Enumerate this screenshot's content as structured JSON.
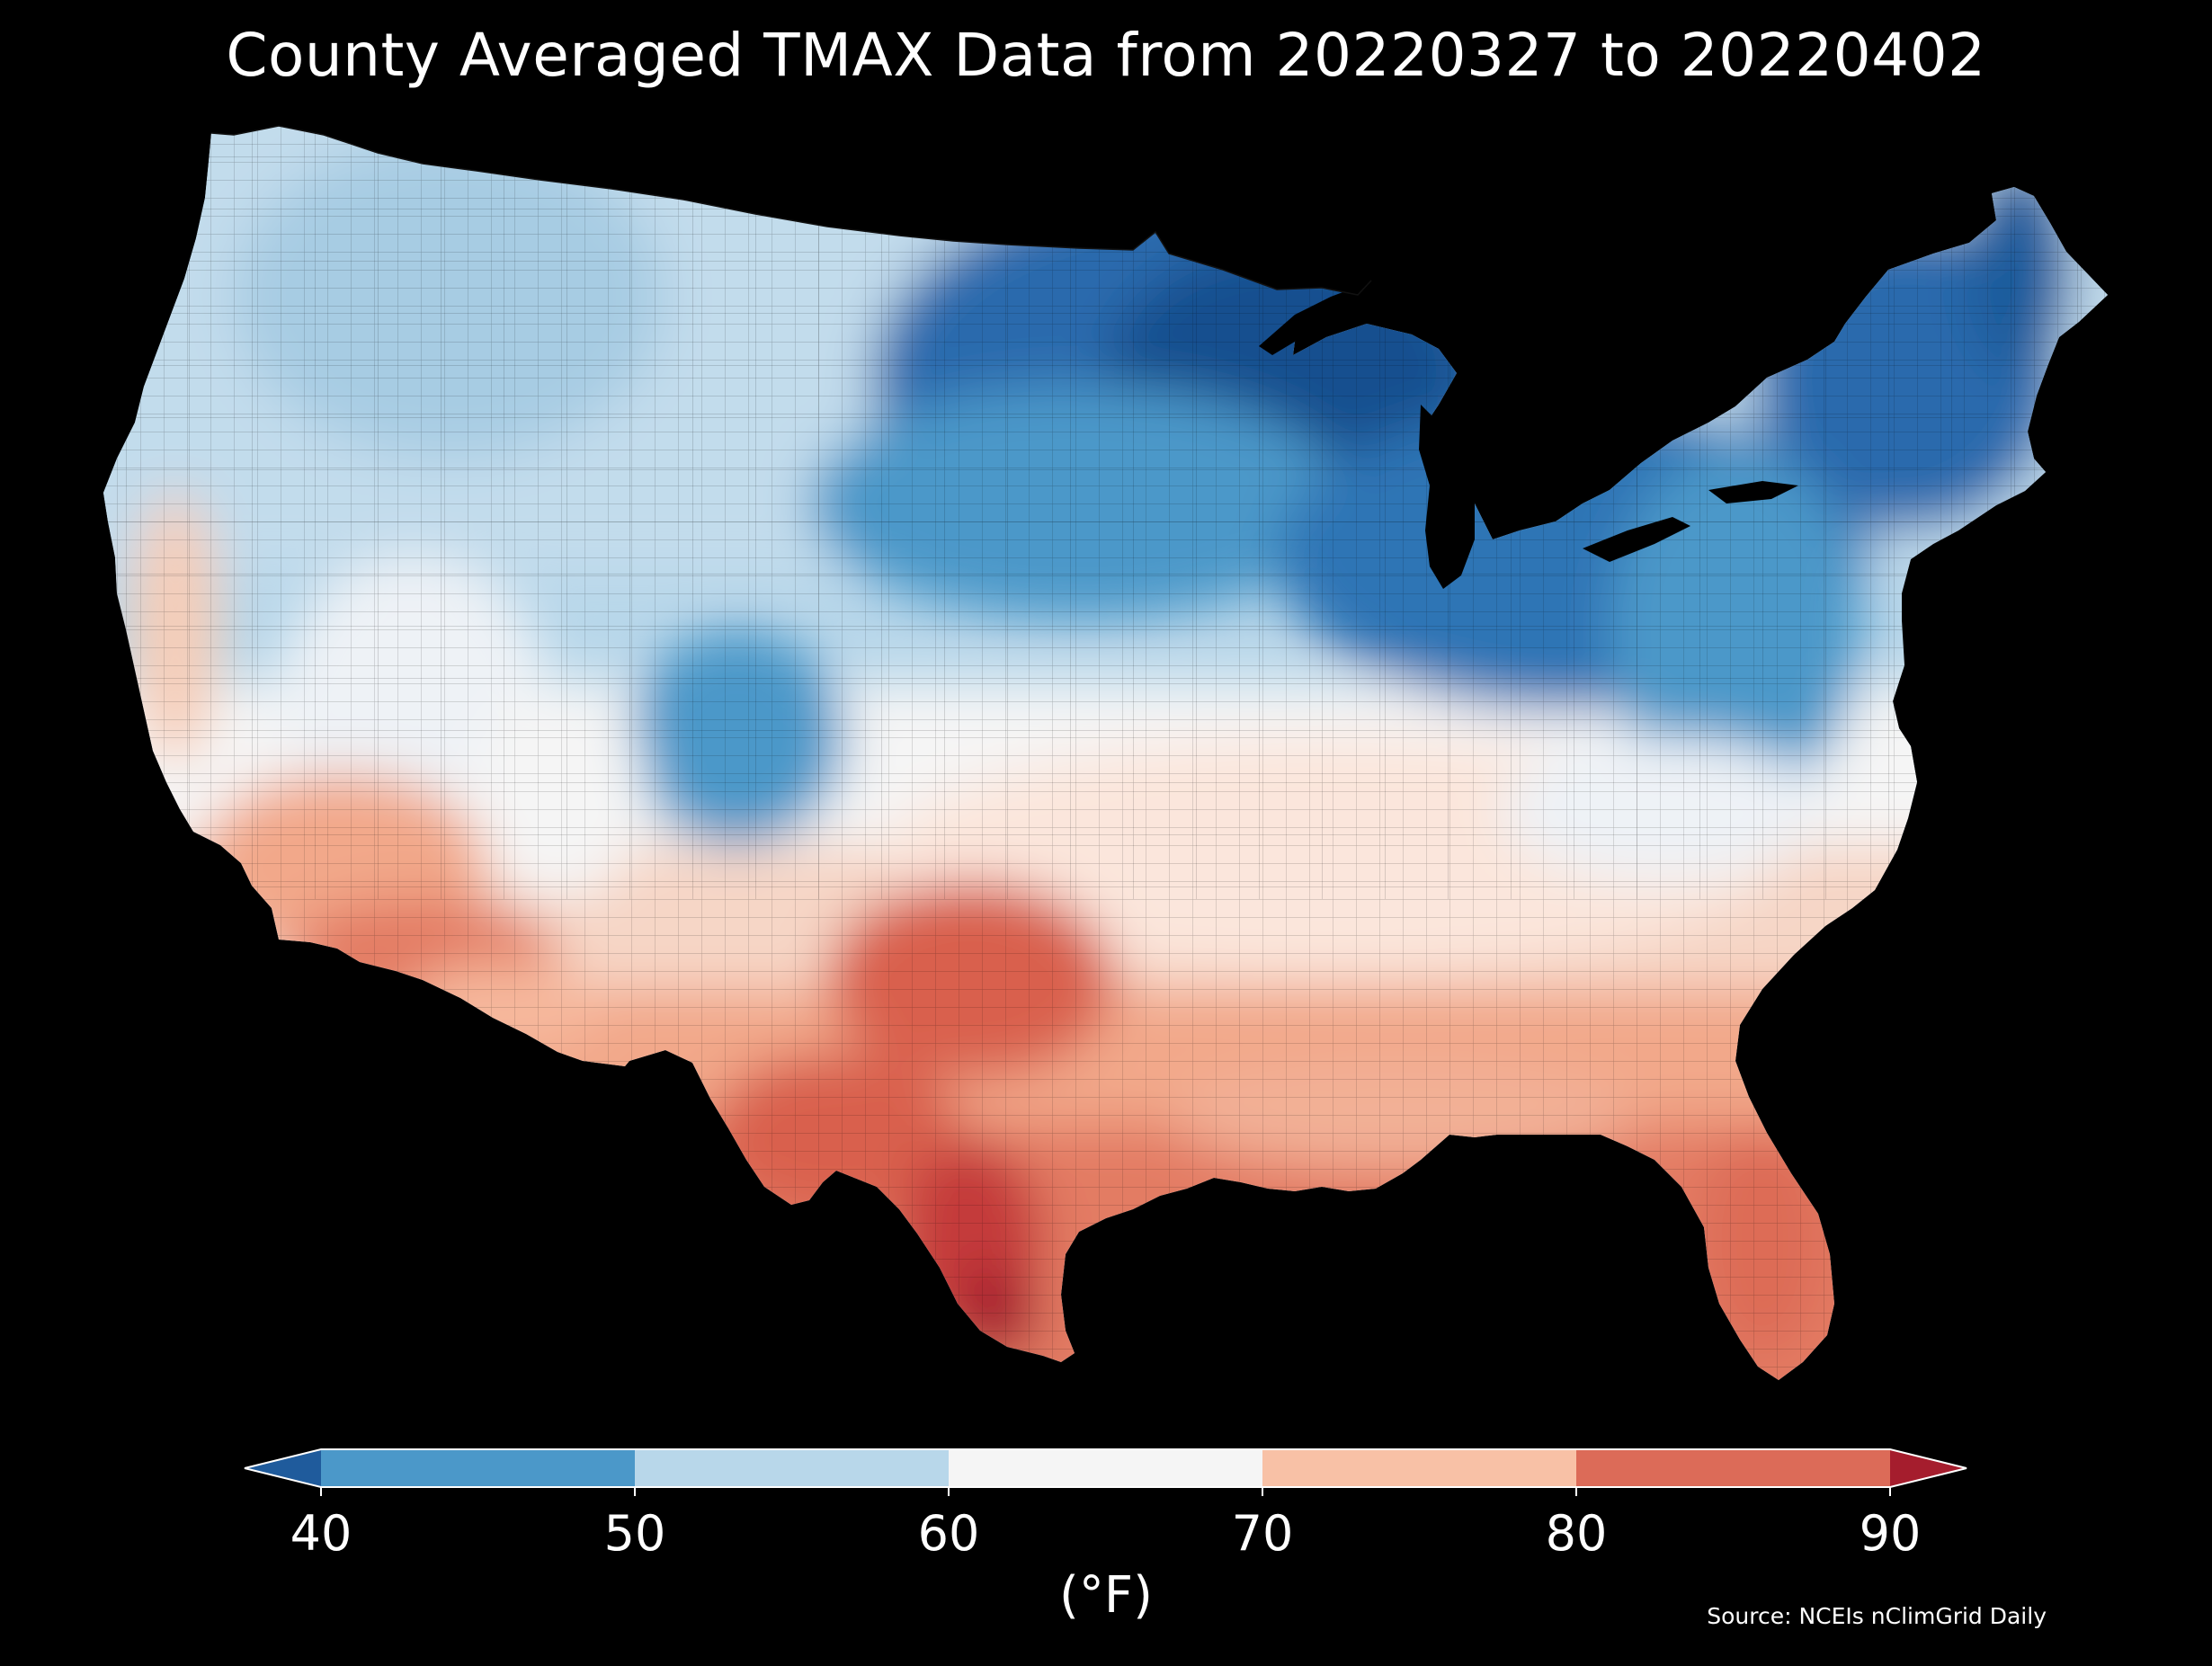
{
  "title": "County Averaged TMAX Data from 20220327 to 20220402",
  "source": "Source: NCEIs nClimGrid Daily",
  "colorbar": {
    "units": "(°F)",
    "ticks": [
      "40",
      "50",
      "60",
      "70",
      "80",
      "90"
    ],
    "min": 40,
    "max": 90,
    "extend": "both",
    "bins": [
      {
        "range": [
          40,
          50
        ],
        "color": "#4b98c9"
      },
      {
        "range": [
          50,
          60
        ],
        "color": "#b8d7ea"
      },
      {
        "range": [
          60,
          70
        ],
        "color": "#f5f5f5"
      },
      {
        "range": [
          70,
          80
        ],
        "color": "#f8c1a6"
      },
      {
        "range": [
          80,
          90
        ],
        "color": "#dc6b58"
      }
    ],
    "under_color": "#1f5b9c",
    "over_color": "#a51d2d"
  },
  "map": {
    "region": "Contiguous United States",
    "unit_of_aggregation": "county",
    "variable": "TMAX",
    "background": "#000000",
    "border_color": "#000000",
    "warmest_area": "South Texas",
    "coolest_area": "Upper Midwest and northern Maine"
  }
}
